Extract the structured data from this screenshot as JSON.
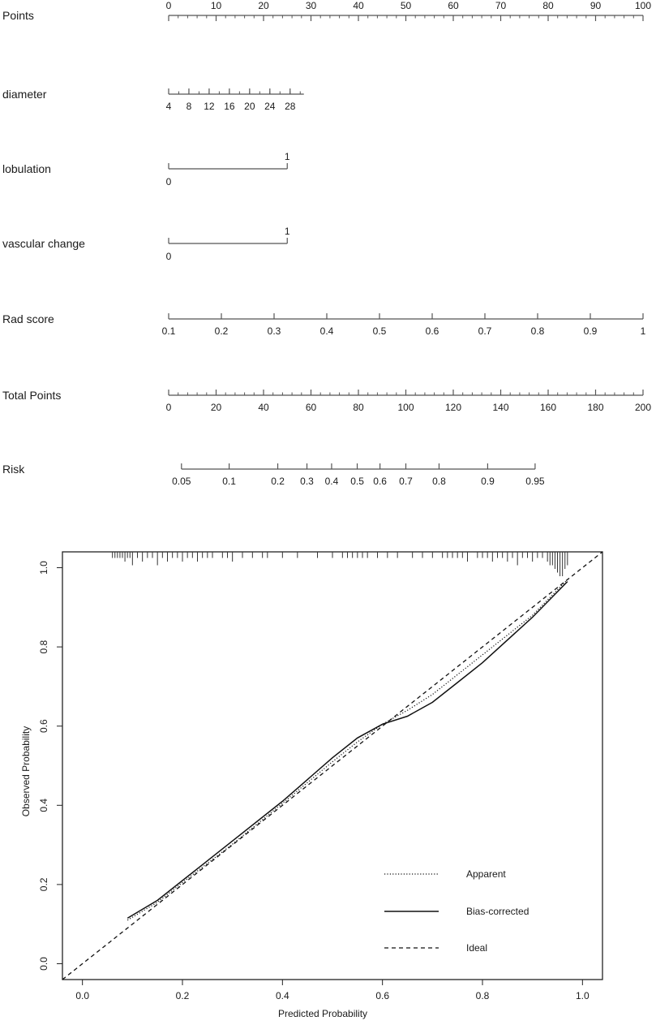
{
  "chart_data": [
    {
      "type": "nomogram",
      "rows": [
        {
          "label": "Points",
          "kind": "numeric",
          "ticks": [
            0,
            10,
            20,
            30,
            40,
            50,
            60,
            70,
            80,
            90,
            100
          ],
          "tick_labels": [
            "0",
            "10",
            "20",
            "30",
            "40",
            "50",
            "60",
            "70",
            "80",
            "90",
            "100"
          ],
          "points_at_first": 0,
          "points_at_last": 100,
          "minor_step": 2
        },
        {
          "label": "diameter",
          "kind": "numeric",
          "ticks": [
            4,
            8,
            12,
            16,
            20,
            24,
            28
          ],
          "tick_labels": [
            "4",
            "8",
            "12",
            "16",
            "20",
            "24",
            "28"
          ],
          "points_at_first": 0,
          "points_at_last": 25.6,
          "axis_end_points": 28.5,
          "minor_step": 2
        },
        {
          "label": "lobulation",
          "kind": "categorical",
          "levels": [
            "0",
            "1"
          ],
          "points": [
            0,
            25
          ]
        },
        {
          "label": "vascular change",
          "kind": "categorical",
          "levels": [
            "0",
            "1"
          ],
          "points": [
            0,
            25
          ]
        },
        {
          "label": "Rad score",
          "kind": "numeric",
          "ticks": [
            0.1,
            0.2,
            0.3,
            0.4,
            0.5,
            0.6,
            0.7,
            0.8,
            0.9,
            1
          ],
          "tick_labels": [
            "0.1",
            "0.2",
            "0.3",
            "0.4",
            "0.5",
            "0.6",
            "0.7",
            "0.8",
            "0.9",
            "1"
          ],
          "points_at_first": 0,
          "points_at_last": 100
        },
        {
          "label": "Total Points",
          "kind": "numeric",
          "ticks": [
            0,
            20,
            40,
            60,
            80,
            100,
            120,
            140,
            160,
            180,
            200
          ],
          "tick_labels": [
            "0",
            "20",
            "40",
            "60",
            "80",
            "100",
            "120",
            "140",
            "160",
            "180",
            "200"
          ],
          "points_at_first": 0,
          "points_at_last": 100,
          "minor_step": 4
        },
        {
          "label": "Risk",
          "kind": "probability",
          "ticks": [
            0.05,
            0.1,
            0.2,
            0.3,
            0.4,
            0.5,
            0.6,
            0.7,
            0.8,
            0.9,
            0.95
          ],
          "tick_labels": [
            "0.05",
            "0.1",
            "0.2",
            "0.3",
            "0.4",
            "0.5",
            "0.6",
            "0.7",
            "0.8",
            "0.9",
            "0.95"
          ],
          "total_points": [
            5.4,
            25.5,
            46,
            58.3,
            68.7,
            79.5,
            89.1,
            100,
            114,
            134.5,
            154.5
          ]
        }
      ]
    },
    {
      "type": "line",
      "xlabel": "Predicted Probability",
      "ylabel": "Observed Probability",
      "xlim": [
        -0.04,
        1.04
      ],
      "ylim": [
        -0.04,
        1.04
      ],
      "xticks": [
        0.0,
        0.2,
        0.4,
        0.6,
        0.8,
        1.0
      ],
      "xtick_labels": [
        "0.0",
        "0.2",
        "0.4",
        "0.6",
        "0.8",
        "1.0"
      ],
      "yticks": [
        0.0,
        0.2,
        0.4,
        0.6,
        0.8,
        1.0
      ],
      "ytick_labels": [
        "0.0",
        "0.2",
        "0.4",
        "0.6",
        "0.8",
        "1.0"
      ],
      "legend_position": "bottom-right",
      "series": [
        {
          "name": "Apparent",
          "style": "dotted",
          "x": [
            0.09,
            0.15,
            0.2,
            0.3,
            0.4,
            0.5,
            0.55,
            0.6,
            0.65,
            0.7,
            0.8,
            0.9,
            0.97
          ],
          "y": [
            0.11,
            0.155,
            0.205,
            0.302,
            0.405,
            0.51,
            0.56,
            0.605,
            0.64,
            0.68,
            0.78,
            0.88,
            0.97
          ]
        },
        {
          "name": "Bias-corrected",
          "style": "solid",
          "x": [
            0.09,
            0.15,
            0.2,
            0.3,
            0.4,
            0.5,
            0.55,
            0.6,
            0.65,
            0.7,
            0.75,
            0.8,
            0.9,
            0.97
          ],
          "y": [
            0.115,
            0.16,
            0.21,
            0.31,
            0.41,
            0.52,
            0.57,
            0.605,
            0.625,
            0.66,
            0.71,
            0.76,
            0.875,
            0.965
          ]
        },
        {
          "name": "Ideal",
          "style": "dashed",
          "x": [
            -0.04,
            1.04
          ],
          "y": [
            -0.04,
            1.04
          ]
        }
      ],
      "rug_x": [
        0.06,
        0.065,
        0.07,
        0.075,
        0.08,
        0.085,
        0.09,
        0.095,
        0.1,
        0.11,
        0.12,
        0.13,
        0.14,
        0.15,
        0.16,
        0.17,
        0.18,
        0.19,
        0.2,
        0.21,
        0.22,
        0.23,
        0.24,
        0.25,
        0.26,
        0.28,
        0.29,
        0.3,
        0.32,
        0.34,
        0.36,
        0.37,
        0.4,
        0.43,
        0.47,
        0.5,
        0.52,
        0.53,
        0.54,
        0.55,
        0.56,
        0.57,
        0.59,
        0.61,
        0.63,
        0.66,
        0.68,
        0.7,
        0.72,
        0.73,
        0.74,
        0.75,
        0.76,
        0.77,
        0.79,
        0.8,
        0.81,
        0.82,
        0.83,
        0.84,
        0.85,
        0.86,
        0.87,
        0.88,
        0.89,
        0.9,
        0.91,
        0.92,
        0.93,
        0.935,
        0.94,
        0.945,
        0.95,
        0.955,
        0.96,
        0.965,
        0.97
      ],
      "rug_heights": [
        1,
        1,
        1,
        1,
        1,
        2,
        1,
        1,
        3,
        1,
        2,
        1,
        1,
        3,
        1,
        2,
        1,
        1,
        2,
        1,
        1,
        2,
        1,
        1,
        1,
        1,
        1,
        2,
        1,
        1,
        1,
        1,
        1,
        1,
        1,
        1,
        1,
        1,
        1,
        1,
        1,
        1,
        1,
        1,
        1,
        1,
        1,
        1,
        1,
        1,
        1,
        1,
        1,
        2,
        1,
        1,
        1,
        2,
        1,
        1,
        2,
        1,
        3,
        1,
        1,
        2,
        1,
        1,
        2,
        3,
        3,
        4,
        5,
        6,
        6,
        4,
        3
      ]
    }
  ]
}
